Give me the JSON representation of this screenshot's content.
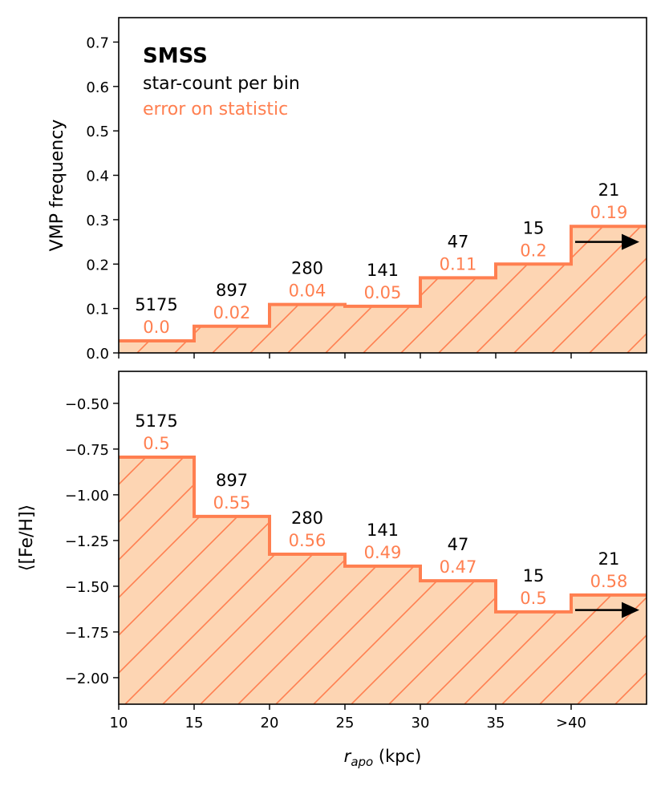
{
  "chart_data": [
    {
      "type": "step",
      "panel": "top",
      "ylabel": "VMP frequency",
      "xlim": [
        10,
        45
      ],
      "ylim": [
        0,
        0.755
      ],
      "yticks": [
        0.0,
        0.1,
        0.2,
        0.3,
        0.4,
        0.5,
        0.6,
        0.7
      ],
      "ytick_labels": [
        "0.0",
        "0.1",
        "0.2",
        "0.3",
        "0.4",
        "0.5",
        "0.6",
        "0.7"
      ],
      "bin_edges": [
        10,
        15,
        20,
        25,
        30,
        35,
        40,
        45
      ],
      "values": [
        0.027,
        0.06,
        0.109,
        0.105,
        0.169,
        0.2,
        0.285
      ],
      "counts": [
        "5175",
        "897",
        "280",
        "141",
        "47",
        "15",
        "21"
      ],
      "errors": [
        "0.0",
        "0.02",
        "0.04",
        "0.05",
        "0.11",
        "0.2",
        "0.19"
      ],
      "arrow_y": 0.25,
      "legend": {
        "title": "SMSS",
        "line1": "star-count per bin",
        "line2": "error on statistic",
        "placement": "top-left"
      }
    },
    {
      "type": "step",
      "panel": "bottom",
      "ylabel": "⟨[Fe/H]⟩",
      "xlabel_main": "r",
      "xlabel_sub": "apo",
      "xlabel_unit": " (kpc)",
      "xlim": [
        10,
        45
      ],
      "ylim": [
        -2.145,
        -0.325
      ],
      "yticks": [
        -0.5,
        -0.75,
        -1.0,
        -1.25,
        -1.5,
        -1.75,
        -2.0
      ],
      "ytick_labels": [
        "−0.50",
        "−0.75",
        "−1.00",
        "−1.25",
        "−1.50",
        "−1.75",
        "−2.00"
      ],
      "xticks": [
        10,
        15,
        20,
        25,
        30,
        35,
        40
      ],
      "xtick_labels": [
        "10",
        "15",
        "20",
        "25",
        "30",
        "35",
        ">40"
      ],
      "bin_edges": [
        10,
        15,
        20,
        25,
        30,
        35,
        40,
        45
      ],
      "values": [
        -0.794,
        -1.118,
        -1.325,
        -1.39,
        -1.47,
        -1.64,
        -1.548
      ],
      "counts": [
        "5175",
        "897",
        "280",
        "141",
        "47",
        "15",
        "21"
      ],
      "errors": [
        "0.5",
        "0.55",
        "0.56",
        "0.49",
        "0.47",
        "0.5",
        "0.58"
      ],
      "arrow_y": -1.63
    }
  ],
  "colors": {
    "line": "#ff7f50",
    "fill": "#fdd5b3",
    "count_text": "#000000",
    "error_text": "#ff7f50"
  }
}
